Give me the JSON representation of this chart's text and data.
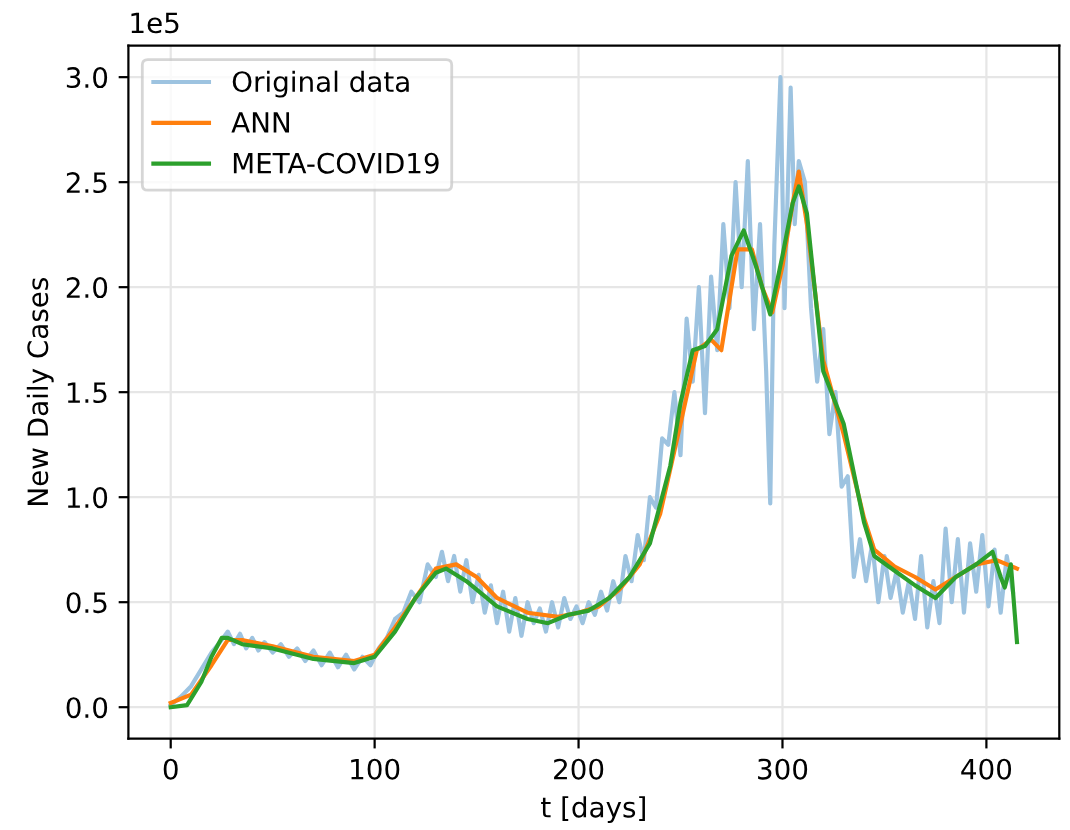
{
  "chart_data": {
    "type": "line",
    "xlabel": "t [days]",
    "ylabel": "New Daily Cases",
    "annotations": [
      "1e5"
    ],
    "xlim": [
      -20.75,
      435.75
    ],
    "ylim": [
      -0.15,
      3.15
    ],
    "xticks": [
      0,
      100,
      200,
      300,
      400
    ],
    "yticks": [
      {
        "value": 0,
        "label": "0.0"
      },
      {
        "value": 0.5,
        "label": "0.5"
      },
      {
        "value": 1,
        "label": "1.0"
      },
      {
        "value": 1.5,
        "label": "1.5"
      },
      {
        "value": 2,
        "label": "2.0"
      },
      {
        "value": 2.5,
        "label": "2.5"
      },
      {
        "value": 3,
        "label": "3.0"
      }
    ],
    "grid": true,
    "legend": "top left",
    "series": [
      {
        "name": "Original data",
        "color": "#9dc3e0",
        "x": [
          0,
          5,
          10,
          15,
          20,
          25,
          28,
          31,
          34,
          37,
          40,
          43,
          46,
          50,
          54,
          58,
          62,
          66,
          70,
          74,
          78,
          82,
          86,
          90,
          94,
          98,
          102,
          106,
          110,
          114,
          118,
          122,
          126,
          130,
          133,
          136,
          139,
          142,
          145,
          148,
          151,
          154,
          157,
          160,
          163,
          166,
          169,
          172,
          175,
          178,
          181,
          184,
          187,
          190,
          193,
          196,
          199,
          202,
          205,
          208,
          211,
          214,
          217,
          220,
          223,
          226,
          229,
          232,
          235,
          238,
          241,
          244,
          247,
          250,
          253,
          256,
          259,
          262,
          265,
          268,
          271,
          274,
          277,
          280,
          283,
          286,
          289,
          292,
          294,
          296,
          299,
          301,
          304,
          306,
          308,
          311,
          314,
          317,
          320,
          323,
          326,
          329,
          332,
          335,
          338,
          341,
          344,
          347,
          350,
          353,
          356,
          359,
          362,
          365,
          368,
          371,
          374,
          377,
          380,
          383,
          386,
          389,
          392,
          395,
          398,
          401,
          404,
          407,
          410,
          413
        ],
        "values": [
          0.01,
          0.05,
          0.1,
          0.18,
          0.26,
          0.32,
          0.36,
          0.3,
          0.35,
          0.28,
          0.33,
          0.27,
          0.31,
          0.26,
          0.3,
          0.24,
          0.28,
          0.22,
          0.27,
          0.2,
          0.26,
          0.19,
          0.25,
          0.18,
          0.24,
          0.2,
          0.28,
          0.33,
          0.42,
          0.45,
          0.55,
          0.5,
          0.68,
          0.62,
          0.74,
          0.6,
          0.72,
          0.55,
          0.7,
          0.5,
          0.63,
          0.45,
          0.58,
          0.4,
          0.55,
          0.36,
          0.52,
          0.34,
          0.5,
          0.4,
          0.47,
          0.36,
          0.5,
          0.38,
          0.52,
          0.42,
          0.48,
          0.4,
          0.5,
          0.44,
          0.55,
          0.46,
          0.6,
          0.5,
          0.72,
          0.6,
          0.82,
          0.7,
          1.0,
          0.95,
          1.28,
          1.25,
          1.5,
          1.2,
          1.85,
          1.55,
          2.0,
          1.4,
          2.05,
          1.7,
          2.3,
          1.9,
          2.5,
          2.0,
          2.6,
          1.8,
          2.3,
          1.6,
          0.97,
          2.2,
          3.0,
          1.9,
          2.95,
          2.3,
          2.6,
          2.5,
          1.9,
          1.55,
          1.8,
          1.3,
          1.5,
          1.05,
          1.1,
          0.62,
          0.8,
          0.6,
          0.78,
          0.5,
          0.72,
          0.52,
          0.65,
          0.45,
          0.6,
          0.42,
          0.72,
          0.38,
          0.6,
          0.4,
          0.85,
          0.5,
          0.8,
          0.45,
          0.78,
          0.55,
          0.82,
          0.48,
          0.75,
          0.45,
          0.72,
          0.55
        ]
      },
      {
        "name": "ANN",
        "color": "#ff7f0e",
        "x": [
          0,
          10,
          20,
          28,
          35,
          50,
          70,
          90,
          100,
          110,
          120,
          130,
          140,
          150,
          160,
          175,
          190,
          200,
          210,
          220,
          230,
          240,
          250,
          258,
          265,
          270,
          278,
          285,
          290,
          295,
          300,
          305,
          308,
          312,
          320,
          330,
          340,
          345,
          355,
          365,
          375,
          385,
          395,
          405,
          415
        ],
        "values": [
          0.02,
          0.06,
          0.2,
          0.32,
          0.32,
          0.29,
          0.24,
          0.22,
          0.25,
          0.38,
          0.52,
          0.66,
          0.68,
          0.62,
          0.52,
          0.45,
          0.43,
          0.45,
          0.48,
          0.56,
          0.68,
          0.92,
          1.35,
          1.7,
          1.75,
          1.7,
          2.18,
          2.18,
          2.0,
          1.88,
          2.1,
          2.4,
          2.55,
          2.3,
          1.65,
          1.3,
          0.9,
          0.75,
          0.67,
          0.62,
          0.56,
          0.62,
          0.68,
          0.7,
          0.66
        ]
      },
      {
        "name": "META-COVID19",
        "color": "#2ca02c",
        "x": [
          0,
          8,
          15,
          20,
          25,
          28,
          35,
          50,
          70,
          90,
          100,
          110,
          120,
          130,
          135,
          145,
          160,
          175,
          185,
          195,
          205,
          215,
          225,
          235,
          245,
          250,
          256,
          262,
          268,
          275,
          281,
          287,
          294,
          300,
          305,
          308,
          312,
          320,
          330,
          340,
          345,
          355,
          365,
          375,
          385,
          395,
          403,
          407,
          409,
          412,
          415
        ],
        "values": [
          0.0,
          0.01,
          0.12,
          0.24,
          0.33,
          0.33,
          0.3,
          0.28,
          0.23,
          0.21,
          0.24,
          0.36,
          0.52,
          0.64,
          0.66,
          0.6,
          0.48,
          0.42,
          0.4,
          0.44,
          0.46,
          0.52,
          0.62,
          0.78,
          1.15,
          1.45,
          1.7,
          1.72,
          1.8,
          2.15,
          2.27,
          2.1,
          1.87,
          2.15,
          2.4,
          2.48,
          2.35,
          1.6,
          1.35,
          0.88,
          0.72,
          0.65,
          0.58,
          0.52,
          0.62,
          0.68,
          0.74,
          0.62,
          0.57,
          0.68,
          0.31
        ]
      }
    ]
  }
}
